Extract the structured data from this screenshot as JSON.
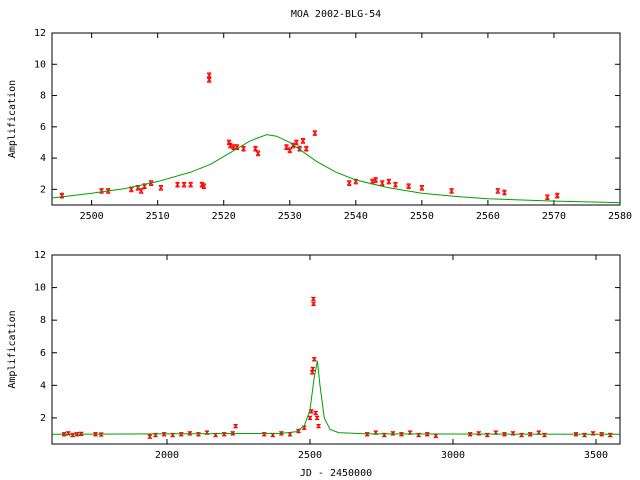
{
  "chart_data": [
    {
      "type": "scatter",
      "title": "MOA 2002-BLG-54",
      "y_label": "Amplification",
      "xlim": [
        2494,
        2580
      ],
      "xticks": [
        2500,
        2510,
        2520,
        2530,
        2540,
        2550,
        2560,
        2570,
        2580
      ],
      "ylim": [
        1,
        12
      ],
      "yticks": [
        2,
        4,
        6,
        8,
        10,
        12
      ],
      "series": [
        {
          "type": "errorbar",
          "color": "#ff0000",
          "x": [
            2495.5,
            2501.5,
            2502.5,
            2506,
            2507,
            2507.5,
            2508,
            2509,
            2510.5,
            2513,
            2514,
            2515,
            2516.7,
            2517,
            2517.8,
            2517.8,
            2520.8,
            2521,
            2521.5,
            2522,
            2523,
            2524.8,
            2525.2,
            2529.5,
            2530,
            2530.5,
            2531,
            2531.5,
            2532,
            2532.5,
            2533.8,
            2539,
            2540,
            2542.5,
            2543,
            2544,
            2545,
            2546,
            2548,
            2550,
            2554.5,
            2561.5,
            2562.5,
            2569,
            2570.5
          ],
          "values": [
            1.6,
            1.9,
            1.9,
            2.0,
            2.1,
            1.9,
            2.2,
            2.4,
            2.1,
            2.3,
            2.3,
            2.3,
            2.3,
            2.2,
            9.3,
            9.0,
            5.0,
            4.8,
            4.7,
            4.7,
            4.6,
            4.6,
            4.3,
            4.7,
            4.5,
            4.8,
            5.0,
            4.6,
            5.1,
            4.6,
            5.6,
            2.4,
            2.5,
            2.5,
            2.6,
            2.4,
            2.5,
            2.3,
            2.2,
            2.1,
            1.9,
            1.9,
            1.8,
            1.5,
            1.6
          ],
          "errors": [
            0.15,
            0.15,
            0.15,
            0.15,
            0.15,
            0.15,
            0.15,
            0.15,
            0.15,
            0.15,
            0.15,
            0.15,
            0.15,
            0.15,
            0.15,
            0.15,
            0.15,
            0.15,
            0.15,
            0.15,
            0.15,
            0.15,
            0.15,
            0.15,
            0.15,
            0.15,
            0.15,
            0.15,
            0.15,
            0.15,
            0.15,
            0.15,
            0.15,
            0.15,
            0.15,
            0.15,
            0.15,
            0.15,
            0.15,
            0.15,
            0.15,
            0.15,
            0.15,
            0.15,
            0.15
          ]
        },
        {
          "type": "line",
          "color": "#00a000",
          "x": [
            2494,
            2500,
            2505,
            2510,
            2515,
            2518,
            2520,
            2522,
            2524,
            2526.5,
            2528,
            2530,
            2532,
            2534,
            2537,
            2540,
            2545,
            2550,
            2555,
            2560,
            2570,
            2580
          ],
          "values": [
            1.45,
            1.75,
            2.05,
            2.5,
            3.1,
            3.6,
            4.1,
            4.6,
            5.1,
            5.5,
            5.4,
            5.0,
            4.4,
            3.8,
            3.1,
            2.6,
            2.1,
            1.75,
            1.55,
            1.4,
            1.25,
            1.15
          ]
        }
      ]
    },
    {
      "type": "scatter",
      "y_label": "Amplification",
      "x_label": "JD - 2450000",
      "xlim": [
        1598,
        3584
      ],
      "xticks": [
        2000,
        2500,
        3000,
        3500
      ],
      "ylim": [
        0.4,
        12
      ],
      "yticks": [
        2,
        4,
        6,
        8,
        10,
        12
      ],
      "series": [
        {
          "type": "errorbar",
          "color": "#ff0000",
          "x": [
            1640,
            1655,
            1670,
            1685,
            1700,
            1750,
            1770,
            1940,
            1960,
            1990,
            2020,
            2050,
            2080,
            2110,
            2140,
            2170,
            2200,
            2230,
            2240,
            2340,
            2370,
            2400,
            2430,
            2460,
            2480,
            2500,
            2505,
            2508,
            2510,
            2512,
            2512.5,
            2515,
            2520,
            2525,
            2530,
            2700,
            2730,
            2760,
            2790,
            2820,
            2850,
            2880,
            2910,
            2940,
            3060,
            3090,
            3120,
            3150,
            3180,
            3210,
            3240,
            3270,
            3300,
            3320,
            3430,
            3460,
            3490,
            3520,
            3550
          ],
          "values": [
            1.0,
            1.05,
            0.95,
            1.0,
            1.02,
            1.0,
            0.98,
            0.85,
            0.95,
            1.0,
            0.95,
            1.0,
            1.05,
            1.0,
            1.1,
            0.95,
            1.0,
            1.05,
            1.5,
            1.0,
            0.95,
            1.05,
            1.0,
            1.2,
            1.4,
            2.0,
            2.4,
            4.8,
            5.0,
            9.3,
            9.0,
            5.6,
            2.3,
            2.0,
            1.5,
            1.0,
            1.1,
            0.95,
            1.05,
            1.0,
            1.1,
            0.95,
            1.0,
            0.9,
            1.0,
            1.05,
            0.95,
            1.1,
            1.0,
            1.05,
            0.95,
            1.0,
            1.1,
            0.95,
            1.0,
            0.95,
            1.05,
            1.0,
            0.95
          ],
          "errors": [
            0.1,
            0.1,
            0.1,
            0.1,
            0.1,
            0.1,
            0.1,
            0.1,
            0.1,
            0.1,
            0.1,
            0.1,
            0.1,
            0.1,
            0.1,
            0.1,
            0.1,
            0.1,
            0.1,
            0.1,
            0.1,
            0.1,
            0.1,
            0.1,
            0.1,
            0.1,
            0.1,
            0.1,
            0.1,
            0.1,
            0.1,
            0.1,
            0.1,
            0.1,
            0.1,
            0.1,
            0.1,
            0.1,
            0.1,
            0.1,
            0.1,
            0.1,
            0.1,
            0.1,
            0.1,
            0.1,
            0.1,
            0.1,
            0.1,
            0.1,
            0.1,
            0.1,
            0.1,
            0.1,
            0.1,
            0.1,
            0.1,
            0.1,
            0.1
          ]
        },
        {
          "type": "line",
          "color": "#00a000",
          "x": [
            1598,
            2400,
            2450,
            2480,
            2500,
            2515,
            2526,
            2535,
            2550,
            2570,
            2600,
            2700,
            3584
          ],
          "values": [
            1.0,
            1.05,
            1.15,
            1.5,
            2.5,
            4.5,
            5.5,
            4.0,
            2.0,
            1.3,
            1.1,
            1.02,
            1.0
          ]
        }
      ]
    }
  ]
}
